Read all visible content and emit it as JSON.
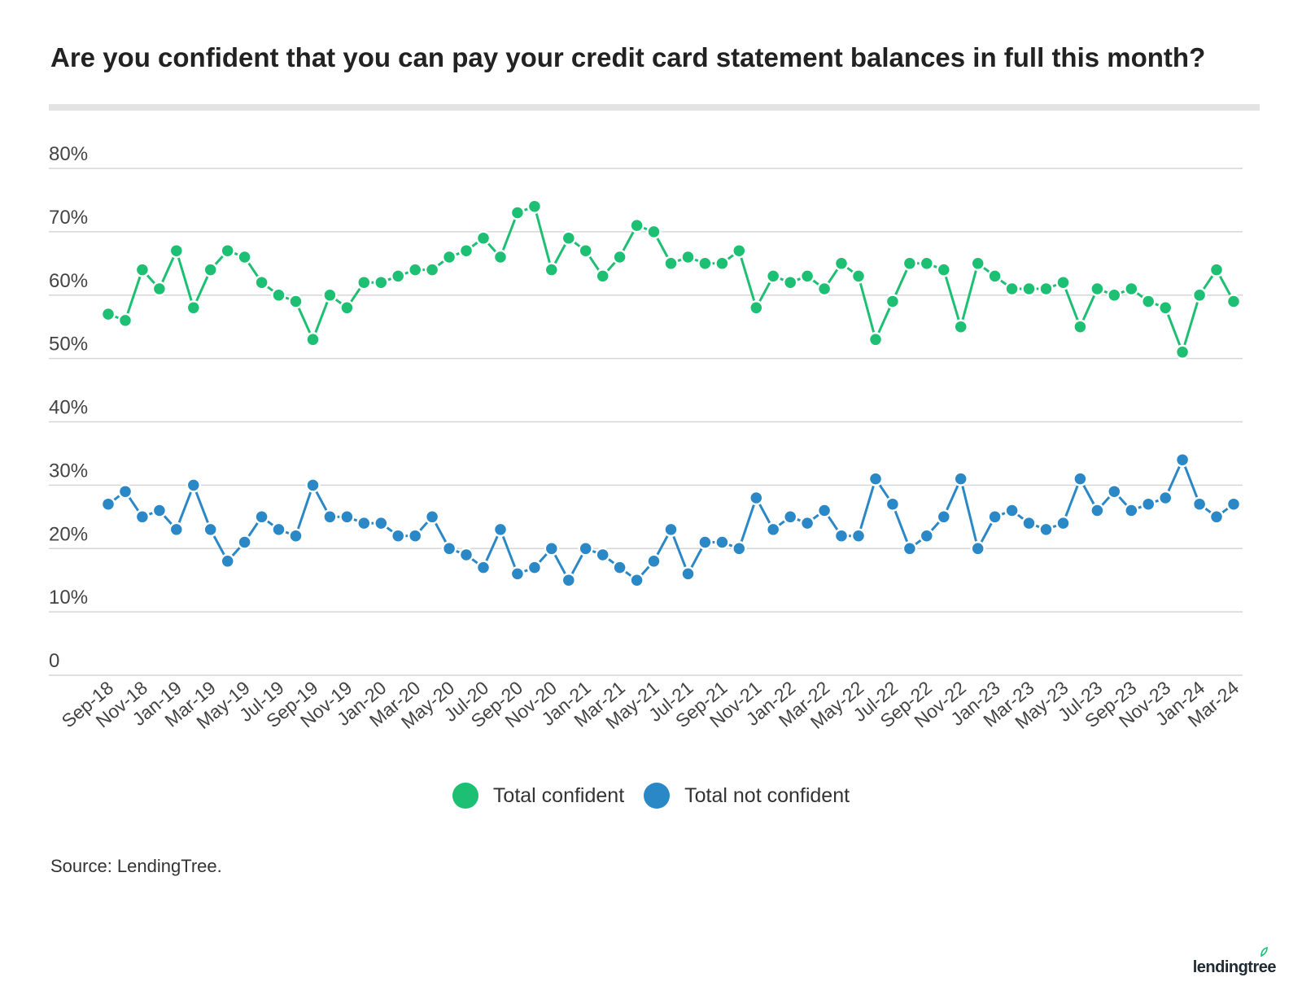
{
  "title": "Are you confident that you can pay your credit card statement balances in full this month?",
  "source": "Source: LendingTree.",
  "brand": "lendingtree",
  "colors": {
    "confident": "#1dbf73",
    "not_confident": "#2b88c6",
    "gridline": "#d6d6d6",
    "rule": "#e3e3e3",
    "text": "#333333"
  },
  "legend": [
    {
      "label": "Total confident",
      "color": "#1dbf73"
    },
    {
      "label": "Total not confident",
      "color": "#2b88c6"
    }
  ],
  "chart_data": {
    "type": "line",
    "title": "Are you confident that you can pay your credit card statement balances in full this month?",
    "xlabel": "",
    "ylabel": "",
    "ylim": [
      0,
      80
    ],
    "yticks": [
      {
        "value": 0,
        "label": "0"
      },
      {
        "value": 10,
        "label": "10%"
      },
      {
        "value": 20,
        "label": "20%"
      },
      {
        "value": 30,
        "label": "30%"
      },
      {
        "value": 40,
        "label": "40%"
      },
      {
        "value": 50,
        "label": "50%"
      },
      {
        "value": 60,
        "label": "60%"
      },
      {
        "value": 70,
        "label": "70%"
      },
      {
        "value": 80,
        "label": "80%"
      }
    ],
    "grid": true,
    "legend_position": "bottom",
    "x": [
      "Sep-18",
      "Oct-18",
      "Nov-18",
      "Dec-18",
      "Jan-19",
      "Feb-19",
      "Mar-19",
      "Apr-19",
      "May-19",
      "Jun-19",
      "Jul-19",
      "Aug-19",
      "Sep-19",
      "Oct-19",
      "Nov-19",
      "Dec-19",
      "Jan-20",
      "Feb-20",
      "Mar-20",
      "Apr-20",
      "May-20",
      "Jun-20",
      "Jul-20",
      "Aug-20",
      "Sep-20",
      "Oct-20",
      "Nov-20",
      "Dec-20",
      "Jan-21",
      "Feb-21",
      "Mar-21",
      "Apr-21",
      "May-21",
      "Jun-21",
      "Jul-21",
      "Aug-21",
      "Sep-21",
      "Oct-21",
      "Nov-21",
      "Dec-21",
      "Jan-22",
      "Feb-22",
      "Mar-22",
      "Apr-22",
      "May-22",
      "Jun-22",
      "Jul-22",
      "Aug-22",
      "Sep-22",
      "Oct-22",
      "Nov-22",
      "Dec-22",
      "Jan-23",
      "Feb-23",
      "Mar-23",
      "Apr-23",
      "May-23",
      "Jun-23",
      "Jul-23",
      "Aug-23",
      "Sep-23",
      "Oct-23",
      "Nov-23",
      "Dec-23",
      "Jan-24",
      "Feb-24",
      "Mar-24"
    ],
    "x_tick_labels": [
      "Sep-18",
      "Nov-18",
      "Jan-19",
      "Mar-19",
      "May-19",
      "Jul-19",
      "Sep-19",
      "Nov-19",
      "Jan-20",
      "Mar-20",
      "May-20",
      "Jul-20",
      "Sep-20",
      "Nov-20",
      "Jan-21",
      "Mar-21",
      "May-21",
      "Jul-21",
      "Sep-21",
      "Nov-21",
      "Jan-22",
      "Mar-22",
      "May-22",
      "Jul-22",
      "Sep-22",
      "Nov-22",
      "Jan-23",
      "Mar-23",
      "May-23",
      "Jul-23",
      "Sep-23",
      "Nov-23",
      "Jan-24",
      "Mar-24"
    ],
    "series": [
      {
        "name": "Total confident",
        "color": "#1dbf73",
        "values": [
          57,
          56,
          64,
          61,
          67,
          58,
          64,
          67,
          66,
          62,
          60,
          59,
          53,
          60,
          58,
          62,
          62,
          63,
          64,
          64,
          66,
          67,
          69,
          66,
          73,
          74,
          64,
          69,
          67,
          63,
          66,
          71,
          70,
          65,
          66,
          65,
          65,
          67,
          58,
          63,
          62,
          63,
          61,
          65,
          63,
          53,
          59,
          65,
          65,
          64,
          55,
          65,
          63,
          61,
          61,
          61,
          62,
          55,
          61,
          60,
          61,
          59,
          58,
          51,
          60,
          64,
          59
        ]
      },
      {
        "name": "Total not confident",
        "color": "#2b88c6",
        "values": [
          27,
          29,
          25,
          26,
          23,
          30,
          23,
          18,
          21,
          25,
          23,
          22,
          30,
          25,
          25,
          24,
          24,
          22,
          22,
          25,
          20,
          19,
          17,
          23,
          16,
          17,
          20,
          15,
          20,
          19,
          17,
          15,
          18,
          23,
          16,
          21,
          21,
          20,
          28,
          23,
          25,
          24,
          26,
          22,
          22,
          31,
          27,
          20,
          22,
          25,
          31,
          20,
          25,
          26,
          24,
          23,
          24,
          31,
          26,
          29,
          26,
          27,
          28,
          34,
          27,
          25,
          27
        ]
      }
    ]
  }
}
